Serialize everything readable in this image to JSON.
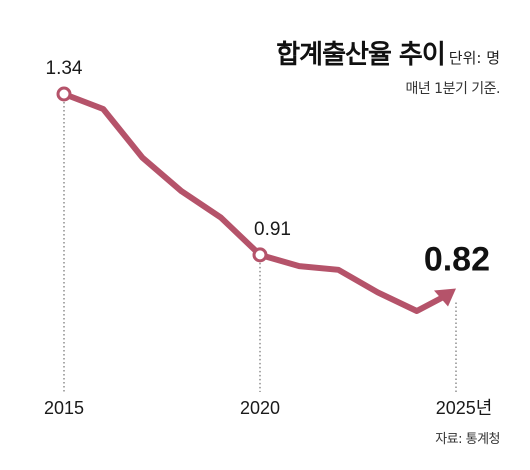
{
  "header": {
    "title": "합계출산율 추이",
    "unit": "단위: 명",
    "subtitle": "매년 1분기 기준.",
    "source": "자료: 통계청"
  },
  "colors": {
    "line": "#B5536A",
    "marker_fill": "#ffffff",
    "guide": "#555555"
  },
  "chart_data": {
    "type": "line",
    "x": [
      2015,
      2016,
      2017,
      2018,
      2019,
      2020,
      2021,
      2022,
      2023,
      2024,
      2025
    ],
    "x_tick_labels": [
      "2015",
      "2020",
      "2025년"
    ],
    "x_ticks": [
      2015,
      2020,
      2025
    ],
    "xlim": [
      2015,
      2025
    ],
    "ylim": [
      0.7,
      1.4
    ],
    "series": [
      {
        "values": [
          1.34,
          1.3,
          1.17,
          1.08,
          1.01,
          0.91,
          0.88,
          0.87,
          0.81,
          0.76,
          0.82
        ]
      }
    ],
    "data_labels": [
      {
        "x": 2015,
        "label": "1.34",
        "emphasis": false,
        "marker": "circle"
      },
      {
        "x": 2020,
        "label": "0.91",
        "emphasis": false,
        "marker": "circle"
      },
      {
        "x": 2025,
        "label": "0.82",
        "emphasis": true,
        "marker": "arrow"
      }
    ],
    "grid": false,
    "legend": "none"
  }
}
